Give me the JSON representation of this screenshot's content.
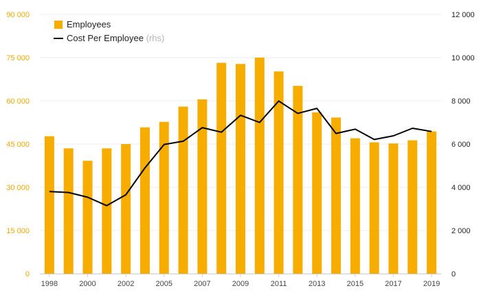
{
  "chart_data": {
    "type": "bar",
    "categories": [
      "1998",
      "1999",
      "2000",
      "2001",
      "2002",
      "2003",
      "2005",
      "2006",
      "2007",
      "2008",
      "2009",
      "2010",
      "2011",
      "2012",
      "2013",
      "2014",
      "2015",
      "2016",
      "2017",
      "2018",
      "2019"
    ],
    "x_tick_labels": [
      "1998",
      "2000",
      "2002",
      "2005",
      "2007",
      "2009",
      "2011",
      "2013",
      "2015",
      "2017",
      "2019"
    ],
    "series": [
      {
        "name": "Employees",
        "type": "bar",
        "axis": "left",
        "color": "#f6ad00",
        "values": [
          47700,
          43500,
          39200,
          43500,
          45000,
          50800,
          52700,
          58000,
          60500,
          73200,
          72800,
          75000,
          70200,
          65200,
          56000,
          54200,
          47000,
          45600,
          45200,
          46300,
          49400
        ]
      },
      {
        "name": "Cost Per Employee",
        "name_suffix": "(rhs)",
        "type": "line",
        "axis": "right",
        "color": "#000000",
        "values": [
          3800,
          3760,
          3540,
          3150,
          3650,
          4900,
          5980,
          6130,
          6760,
          6550,
          7330,
          7000,
          7990,
          7420,
          7650,
          6490,
          6690,
          6210,
          6380,
          6730,
          6580
        ]
      }
    ],
    "y_left": {
      "range": [
        0,
        90000
      ],
      "ticks": [
        0,
        15000,
        30000,
        45000,
        60000,
        75000,
        90000
      ],
      "tick_labels": [
        "0",
        "15 000",
        "30 000",
        "45 000",
        "60 000",
        "75 000",
        "90 000"
      ],
      "color": "#f0a800"
    },
    "y_right": {
      "range": [
        0,
        12000
      ],
      "ticks": [
        0,
        2000,
        4000,
        6000,
        8000,
        10000,
        12000
      ],
      "tick_labels": [
        "0",
        "2 000",
        "4 000",
        "6 000",
        "8 000",
        "10 000",
        "12 000"
      ],
      "color": "#222222"
    },
    "grid": true,
    "legend_position": "top-left"
  }
}
